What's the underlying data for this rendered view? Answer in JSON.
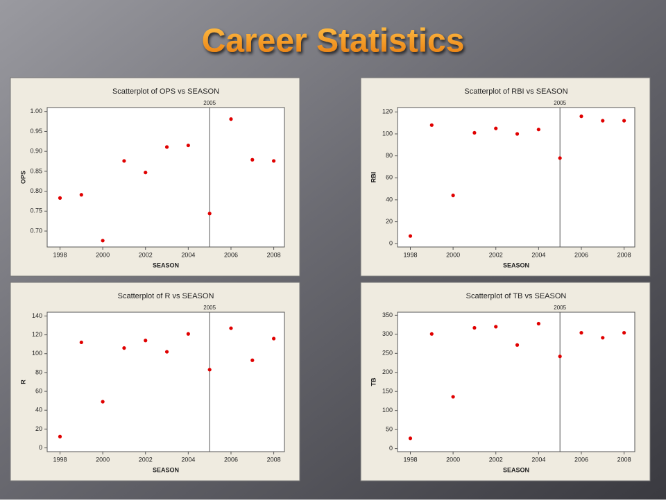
{
  "title": "Career Statistics",
  "chart_data": [
    {
      "type": "scatter",
      "title": "Scatterplot of OPS vs SEASON",
      "x_label": "SEASON",
      "y_label": "OPS",
      "color": "#e00000",
      "x": [
        1998,
        1999,
        2000,
        2001,
        2002,
        2003,
        2004,
        2005,
        2006,
        2007,
        2008
      ],
      "values": [
        0.783,
        0.791,
        0.676,
        0.876,
        0.847,
        0.911,
        0.915,
        0.744,
        0.981,
        0.879,
        0.876
      ],
      "xlim": [
        1997.4,
        2008.5
      ],
      "xticks": [
        1998,
        2000,
        2002,
        2004,
        2006,
        2008
      ],
      "ylim": [
        0.66,
        1.01
      ],
      "yticks": [
        {
          "value": 0.7,
          "label": "0.70"
        },
        0.75,
        {
          "value": 0.8,
          "label": "0.80"
        },
        0.85,
        {
          "value": 0.9,
          "label": "0.90"
        },
        0.95,
        {
          "value": 1,
          "label": "1.00"
        }
      ],
      "xref": 2005
    },
    {
      "type": "scatter",
      "title": "Scatterplot of RBI vs SEASON",
      "x_label": "SEASON",
      "y_label": "RBI",
      "color": "#e00000",
      "x": [
        1998,
        1999,
        2000,
        2001,
        2002,
        2003,
        2004,
        2005,
        2006,
        2007,
        2008
      ],
      "values": [
        7,
        108,
        44,
        101,
        105,
        100,
        104,
        78,
        116,
        112,
        112
      ],
      "xlim": [
        1997.4,
        2008.5
      ],
      "xticks": [
        1998,
        2000,
        2002,
        2004,
        2006,
        2008
      ],
      "ylim": [
        -3,
        124
      ],
      "yticks": [
        0,
        20,
        40,
        60,
        80,
        100,
        120
      ],
      "xref": 2005
    },
    {
      "type": "scatter",
      "title": "Scatterplot of R vs SEASON",
      "x_label": "SEASON",
      "y_label": "R",
      "color": "#e00000",
      "x": [
        1998,
        1999,
        2000,
        2001,
        2002,
        2003,
        2004,
        2005,
        2006,
        2007,
        2008
      ],
      "values": [
        12,
        112,
        49,
        106,
        114,
        102,
        121,
        83,
        127,
        93,
        116
      ],
      "xlim": [
        1997.4,
        2008.5
      ],
      "xticks": [
        1998,
        2000,
        2002,
        2004,
        2006,
        2008
      ],
      "ylim": [
        -4,
        144
      ],
      "yticks": [
        0,
        20,
        40,
        60,
        80,
        100,
        120,
        140
      ],
      "xref": 2005
    },
    {
      "type": "scatter",
      "title": "Scatterplot of TB vs SEASON",
      "x_label": "SEASON",
      "y_label": "TB",
      "color": "#e00000",
      "x": [
        1998,
        1999,
        2000,
        2001,
        2002,
        2003,
        2004,
        2005,
        2006,
        2007,
        2008
      ],
      "values": [
        27,
        301,
        136,
        317,
        320,
        272,
        328,
        242,
        304,
        291,
        304
      ],
      "xlim": [
        1997.4,
        2008.5
      ],
      "xticks": [
        1998,
        2000,
        2002,
        2004,
        2006,
        2008
      ],
      "ylim": [
        -8,
        358
      ],
      "yticks": [
        0,
        50,
        100,
        150,
        200,
        250,
        300,
        350
      ],
      "xref": 2005
    }
  ]
}
